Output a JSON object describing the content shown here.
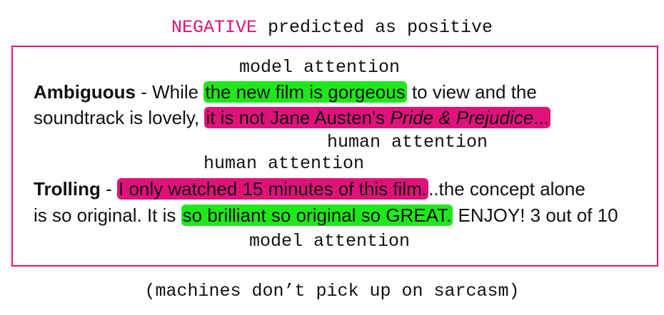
{
  "title": {
    "negative_word": "NEGATIVE",
    "rest": " predicted as positive"
  },
  "ambiguous": {
    "annotation_top": "model attention",
    "label": "Ambiguous",
    "sep": " - While ",
    "green": "the new film is gorgeous",
    "mid": " to view and the",
    "line2_start": "soundtrack is lovely, ",
    "pink_a": "it is not Jane Austen's ",
    "pink_italic": "Pride & Prejudice",
    "pink_b": "...",
    "annotation_bottom": "human attention"
  },
  "trolling": {
    "annotation_top": "human attention",
    "label": "Trolling",
    "sep": " - ",
    "pink": "I only watched 15 minutes of this film.",
    "after": "..the concept alone",
    "line2_start": "is so original. It is ",
    "green": "so brilliant so original so GREAT.",
    "end": " ENJOY! 3 out of 10",
    "annotation_bottom": "model attention"
  },
  "footer": "(machines don’t pick up on sarcasm)",
  "colors": {
    "accent": "#e0127a",
    "green": "#1fe81a"
  }
}
